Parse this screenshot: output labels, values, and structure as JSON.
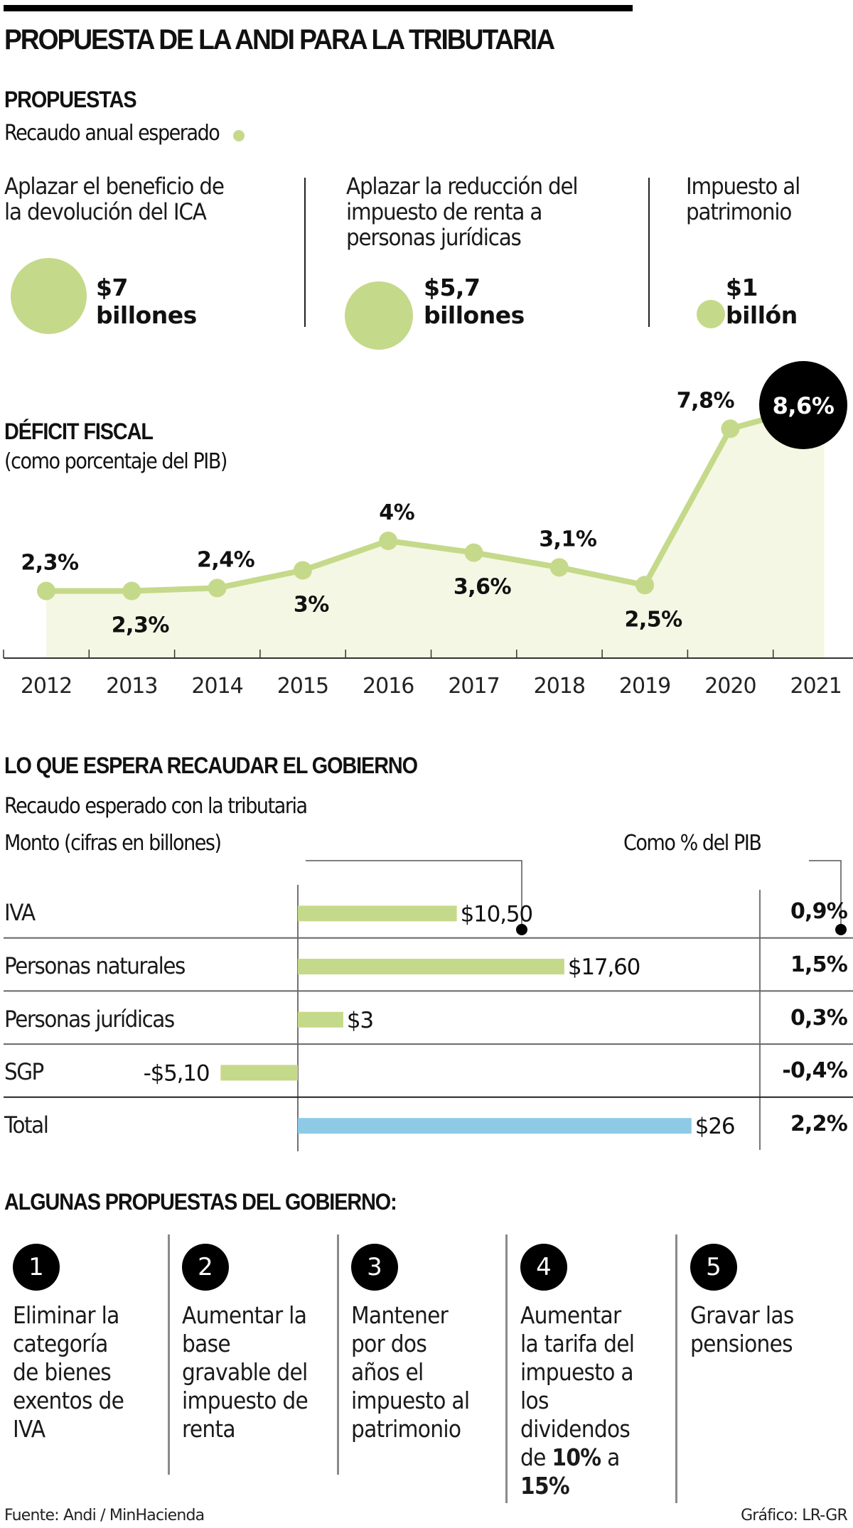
{
  "header": {
    "title": "PROPUESTA DE LA ANDI PARA LA TRIBUTARIA"
  },
  "andi": {
    "heading": "PROPUESTAS",
    "subtitle": "Recaudo anual esperado",
    "legend_color": "#c5d98a",
    "items": [
      {
        "lines": [
          "Aplazar el beneficio de",
          "la devolución del ICA"
        ],
        "amount": "$7",
        "unit": "billones",
        "value_billions": 7
      },
      {
        "lines": [
          "Aplazar la reducción del",
          "impuesto de renta a",
          "personas jurídicas"
        ],
        "amount": "$5,7",
        "unit": "billones",
        "value_billions": 5.7
      },
      {
        "lines": [
          "Impuesto al",
          "patrimonio"
        ],
        "amount": "$1",
        "unit": "billón",
        "value_billions": 1
      }
    ]
  },
  "deficit": {
    "heading": "DÉFICIT FISCAL",
    "subtitle": "(como porcentaje del PIB)"
  },
  "gobierno": {
    "heading": "LO QUE ESPERA RECAUDAR EL GOBIERNO",
    "subtitle": "Recaudo esperado con la tributaria",
    "monto_label": "Monto (cifras en billones)",
    "pib_label": "Como % del PIB"
  },
  "propuestas_gobierno": {
    "heading": "ALGUNAS PROPUESTAS DEL GOBIERNO:",
    "items": [
      {
        "number": "1",
        "lines": [
          "Eliminar la",
          "categoría",
          "de bienes",
          "exentos de",
          "IVA"
        ]
      },
      {
        "number": "2",
        "lines": [
          "Aumentar la",
          "base",
          "gravable del",
          "impuesto de",
          "renta"
        ]
      },
      {
        "number": "3",
        "lines": [
          "Mantener",
          "por dos",
          "años el",
          "impuesto al",
          "patrimonio"
        ]
      },
      {
        "number": "4",
        "lines": [
          "Aumentar",
          "la tarifa del",
          "impuesto a",
          "los",
          "dividendos"
        ],
        "line6_pre": "de ",
        "line6_bold": "10%",
        "line6_post": " a",
        "line7_bold": "15%"
      },
      {
        "number": "5",
        "lines": [
          "Gravar las",
          "pensiones"
        ]
      }
    ]
  },
  "footer": {
    "source": "Fuente: Andi / MinHacienda",
    "credit": "Gráfico: LR-GR"
  },
  "chart_data": [
    {
      "type": "area",
      "title": "DÉFICIT FISCAL",
      "subtitle": "(como porcentaje del PIB)",
      "xlabel": "",
      "ylabel": "",
      "categories": [
        "2012",
        "2013",
        "2014",
        "2015",
        "2016",
        "2017",
        "2018",
        "2019",
        "2020",
        "2021"
      ],
      "values": [
        2.3,
        2.3,
        2.4,
        3.0,
        4.0,
        3.6,
        3.1,
        2.5,
        7.8,
        8.6
      ],
      "labels": [
        "2,3%",
        "2,3%",
        "2,4%",
        "3%",
        "4%",
        "3,6%",
        "3,1%",
        "2,5%",
        "7,8%",
        "8,6%"
      ],
      "label_positions": [
        "above",
        "below",
        "above",
        "below",
        "above",
        "below",
        "above",
        "below",
        "above",
        "highlight"
      ],
      "ylim": [
        0,
        9
      ],
      "grid": false,
      "colors": {
        "line": "#c5d98a",
        "fill": "#f4f7e3",
        "highlight": "#000000"
      }
    },
    {
      "type": "bar",
      "title": "LO QUE ESPERA RECAUDAR EL GOBIERNO",
      "subtitle": "Recaudo esperado con la tributaria",
      "xlabel": "Monto (cifras en billones)",
      "categories": [
        "IVA",
        "Personas naturales",
        "Personas jurídicas",
        "SGP",
        "Total"
      ],
      "values": [
        10.5,
        17.6,
        3,
        -5.1,
        26
      ],
      "value_labels": [
        "$10,50",
        "$17,60",
        "$3",
        "-$5,10",
        "$26"
      ],
      "pct_pib": [
        0.9,
        1.5,
        0.3,
        -0.4,
        2.2
      ],
      "pct_pib_labels": [
        "0,9%",
        "1,5%",
        "0,3%",
        "-0,4%",
        "2,2%"
      ],
      "pct_pib_header": "Como % del PIB",
      "colors": {
        "bars": "#c5d98a",
        "total": "#8ecae6"
      }
    }
  ]
}
